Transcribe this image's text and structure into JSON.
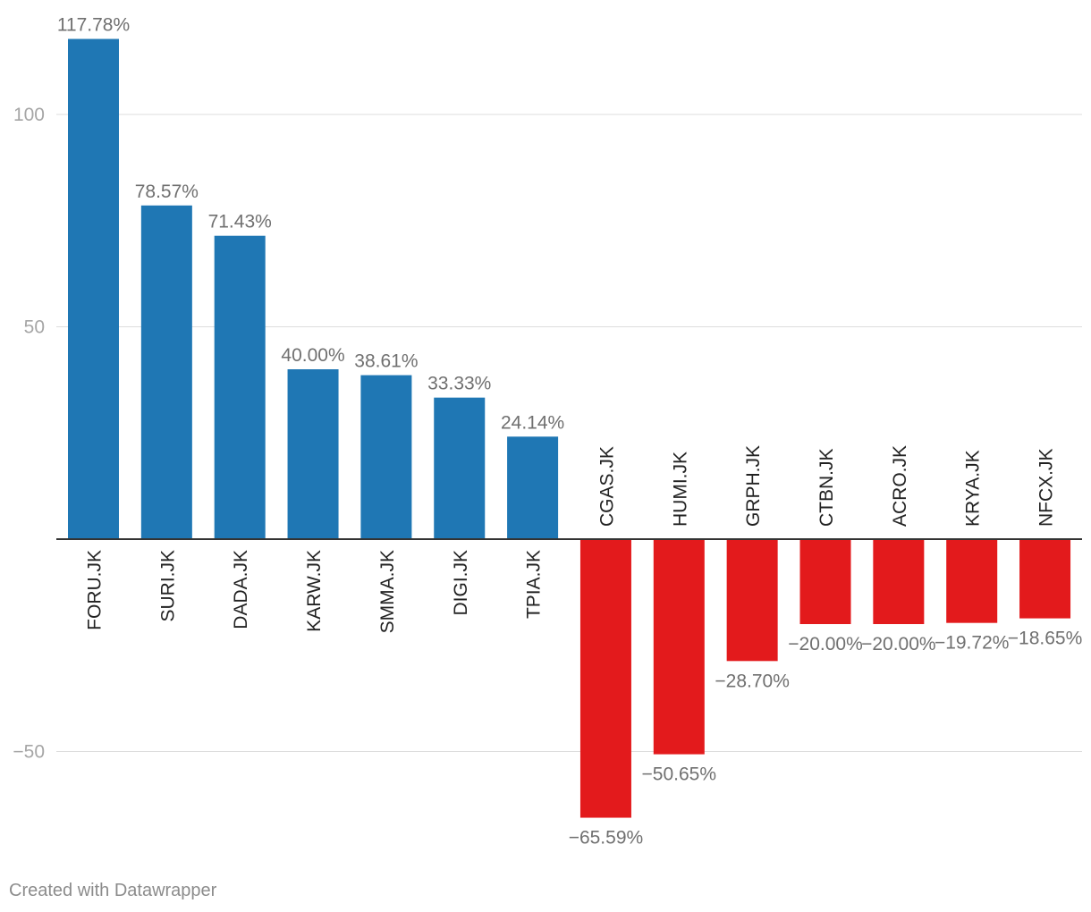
{
  "chart_data": {
    "type": "bar",
    "categories": [
      "FORU.JK",
      "SURI.JK",
      "DADA.JK",
      "KARW.JK",
      "SMMA.JK",
      "DIGI.JK",
      "TPIA.JK",
      "CGAS.JK",
      "HUMI.JK",
      "GRPH.JK",
      "CTBN.JK",
      "ACRO.JK",
      "KRYA.JK",
      "NFCX.JK"
    ],
    "values": [
      117.78,
      78.57,
      71.43,
      40.0,
      38.61,
      33.33,
      24.14,
      -65.59,
      -50.65,
      -28.7,
      -20.0,
      -20.0,
      -19.72,
      -18.65
    ],
    "data_labels": [
      "117.78%",
      "78.57%",
      "71.43%",
      "40.00%",
      "38.61%",
      "33.33%",
      "24.14%",
      "−65.59%",
      "−50.65%",
      "−28.70%",
      "−20.00%",
      "−20.00%",
      "−19.72%",
      "−18.65%"
    ],
    "y_ticks": [
      100,
      50,
      -50
    ],
    "y_tick_labels": [
      "100",
      "50",
      "−50"
    ],
    "ylim": [
      -75,
      125
    ],
    "grid": true,
    "title": "",
    "xlabel": "",
    "ylabel": "",
    "colors": {
      "positive": "#1f77b4",
      "negative": "#e31a1c",
      "label": "#707070",
      "axis": "#333333",
      "grid": "#dddddd",
      "tick": "#a6a6a6"
    }
  },
  "footer": {
    "credit": "Created with Datawrapper"
  }
}
